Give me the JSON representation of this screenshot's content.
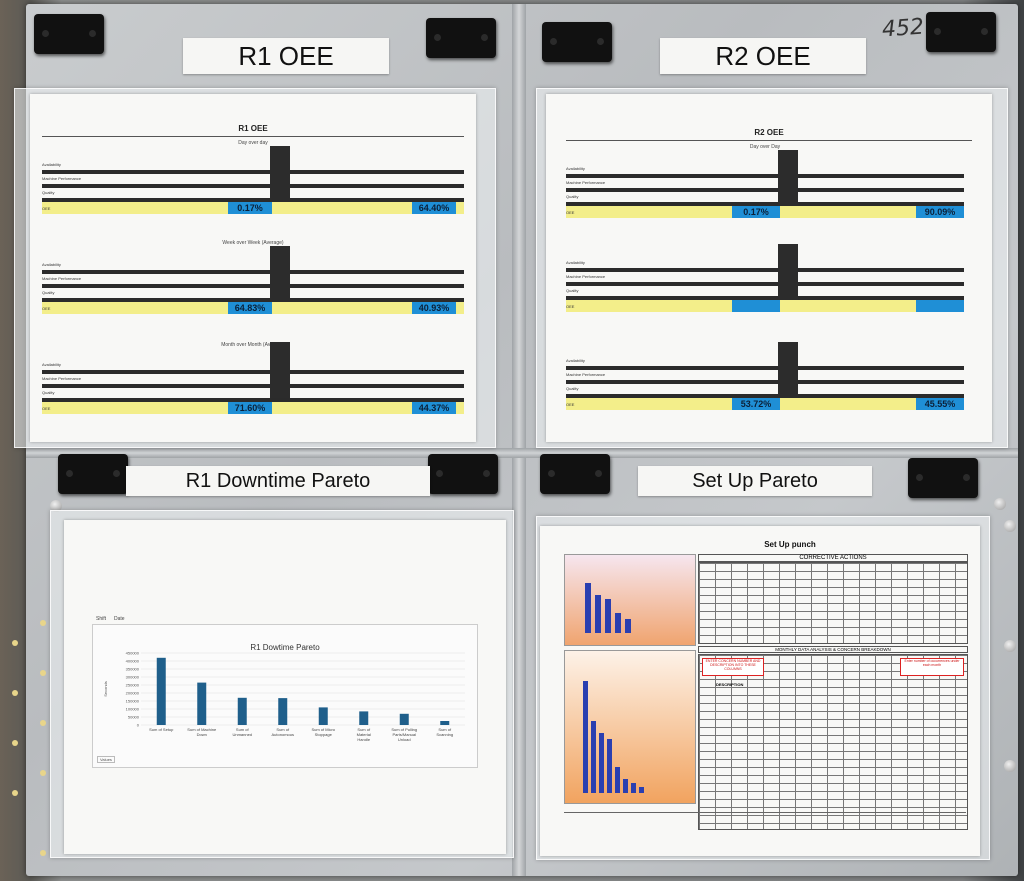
{
  "board": {
    "handwritten_number": "452"
  },
  "labels": {
    "r1_oee": "R1 OEE",
    "r2_oee": "R2 OEE",
    "r1_downtime": "R1 Downtime Pareto",
    "setup_pareto": "Set Up Pareto"
  },
  "r1_sheet": {
    "title": "R1 OEE",
    "day": {
      "heading": "Day over day",
      "oee_total_left": "0.17%",
      "oee_total_right": "64.40%"
    },
    "week": {
      "heading": "Week over Week (Average)",
      "oee_total_left": "64.83%",
      "oee_total_right": "40.93%"
    },
    "month": {
      "heading": "Month over Month (Average)",
      "oee_total_left": "71.60%",
      "oee_total_right": "44.37%"
    },
    "row_labels": [
      "Availability",
      "Machine Performance",
      "Quality",
      "OEE"
    ]
  },
  "r2_sheet": {
    "title": "R2 OEE",
    "day": {
      "heading": "Day over Day",
      "oee_total_left": "0.17%",
      "oee_total_right": "90.09%"
    },
    "month": {
      "oee_total_left": "53.72%",
      "oee_total_right": "45.55%"
    },
    "row_labels": [
      "Availability",
      "Machine Performance",
      "Quality",
      "OEE"
    ]
  },
  "downtime_sheet": {
    "header_fields": [
      "Shift",
      "Date"
    ],
    "title": "R1 Dowtime Pareto",
    "values_label": "Values",
    "y_axis_label": "Seconds",
    "y_ticks": [
      "450000",
      "400000",
      "350000",
      "300000",
      "250000",
      "200000",
      "150000",
      "100000",
      "50000",
      "0"
    ]
  },
  "setup_sheet": {
    "title": "Set Up punch",
    "corrective_actions": "CORRECTIVE ACTIONS",
    "monthly_breakdown": "MONTHLY DATA ANALYSIS & CONCERN BREAKDOWN",
    "description_header": "DESCRIPTION",
    "note_left": "ENTER CONCERN NUMBER AND DESCRIPTION INTO THESE COLUMNS",
    "note_right": "Enter number of occurrences under each month"
  },
  "chart_data": {
    "type": "bar",
    "title": "R1 Dowtime Pareto",
    "ylabel": "Seconds",
    "ylim": [
      0,
      450000
    ],
    "categories": [
      "Sum of Setup",
      "Sum of Machine Down",
      "Sum of Unmanned",
      "Sum of Autonomous",
      "Sum of Micro Stoppage",
      "Sum of Material Handle",
      "Sum of Pulling Parts/Manual Unload",
      "Sum of Scanning"
    ],
    "values": [
      420000,
      265000,
      170000,
      168000,
      110000,
      85000,
      70000,
      25000
    ]
  },
  "colors": {
    "bar": "#1f5f8b",
    "oee_blue": "#1f8fd6",
    "oee_yellow": "#f3ee8a"
  }
}
